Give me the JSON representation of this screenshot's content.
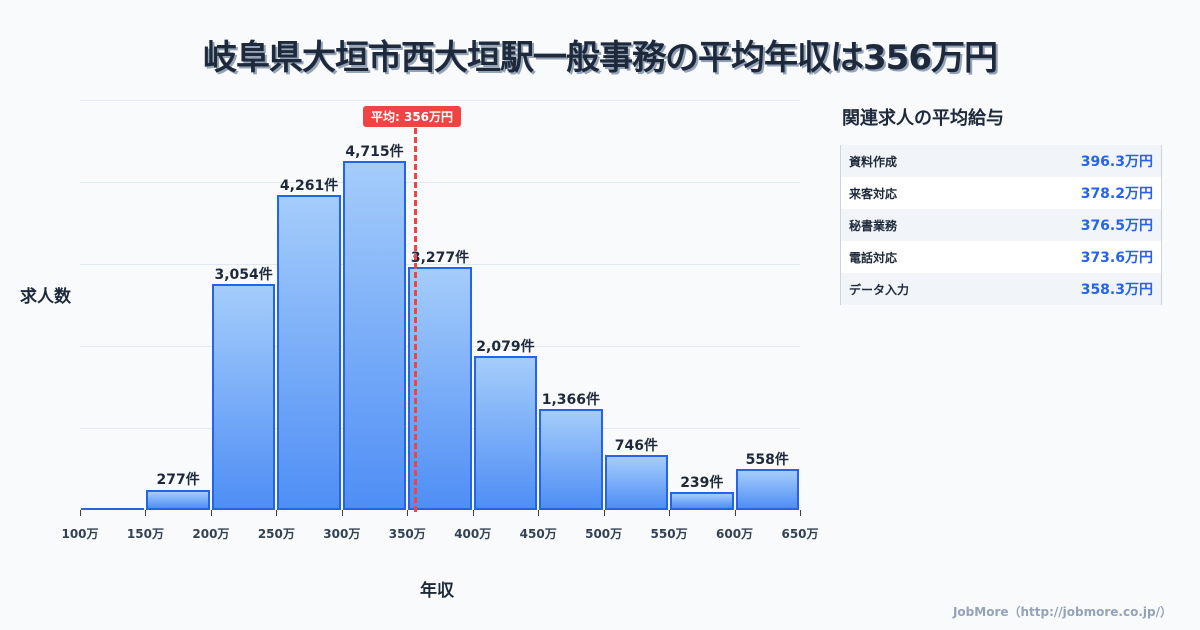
{
  "title": "岐阜県大垣市西大垣駅一般事務の平均年収は356万円",
  "chart_data": {
    "type": "bar",
    "title": "岐阜県大垣市西大垣駅一般事務の平均年収は356万円",
    "xlabel": "年収",
    "ylabel": "求人数",
    "categories": [
      "100-150万",
      "150-200万",
      "200-250万",
      "250-300万",
      "300-350万",
      "350-400万",
      "400-450万",
      "450-500万",
      "500-550万",
      "550-600万",
      "600-650万"
    ],
    "values": [
      0,
      277,
      3054,
      4261,
      4715,
      3277,
      2079,
      1366,
      746,
      239,
      558
    ],
    "value_labels": [
      "",
      "277件",
      "3,054件",
      "4,261件",
      "4,715件",
      "3,277件",
      "2,079件",
      "1,366件",
      "746件",
      "239件",
      "558件"
    ],
    "x_ticks": [
      "100万",
      "150万",
      "200万",
      "250万",
      "300万",
      "350万",
      "400万",
      "450万",
      "500万",
      "550万",
      "600万",
      "650万"
    ],
    "mean": {
      "value": 356,
      "label": "平均: 356万円",
      "color": "#ef4444"
    },
    "grid": true,
    "bar_color": "#2563eb"
  },
  "sidebar": {
    "title": "関連求人の平均給与",
    "items": [
      {
        "name": "資料作成",
        "value": "396.3万円"
      },
      {
        "name": "来客対応",
        "value": "378.2万円"
      },
      {
        "name": "秘書業務",
        "value": "376.5万円"
      },
      {
        "name": "電話対応",
        "value": "373.6万円"
      },
      {
        "name": "データ入力",
        "value": "358.3万円"
      }
    ]
  },
  "footer": "JobMore（http://jobmore.co.jp/）"
}
